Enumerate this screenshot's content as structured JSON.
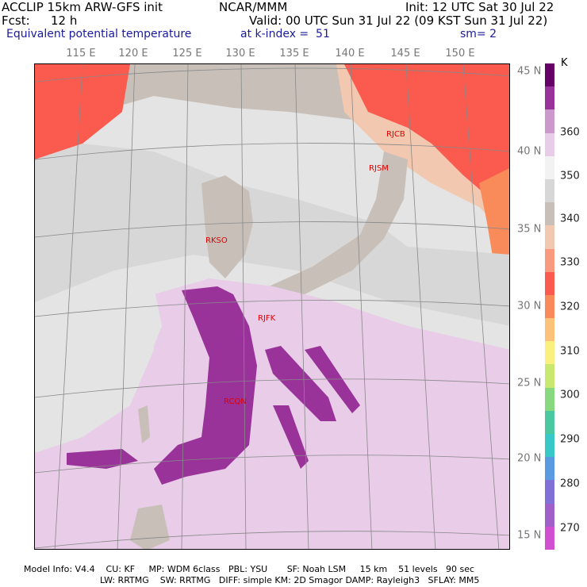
{
  "header": {
    "line1_left": "ACCLIP 15km ARW-GFS init",
    "line1_center": "NCAR/MMM",
    "line1_right": "Init: 12 UTC Sat 30 Jul 22",
    "fcst_label": "Fcst:",
    "fcst_value": "12 h",
    "valid": "Valid: 00 UTC Sun 31 Jul 22 (09 KST Sun 31 Jul 22)",
    "field": "Equivalent potential temperature",
    "level": "at k-index =  51",
    "smoothing": "sm= 2"
  },
  "map": {
    "lon_labels": [
      "115 E",
      "120 E",
      "125 E",
      "130 E",
      "135 E",
      "140 E",
      "145 E",
      "150 E"
    ],
    "lat_labels": [
      "45 N",
      "40 N",
      "35 N",
      "30 N",
      "25 N",
      "20 N",
      "15 N"
    ],
    "stations": [
      "RJCB",
      "RJSM",
      "RKSO",
      "RJFK",
      "RCQN"
    ]
  },
  "colorbar": {
    "unit": "K",
    "labels": [
      "360",
      "350",
      "340",
      "330",
      "320",
      "310",
      "300",
      "290",
      "280",
      "270"
    ],
    "colors": [
      "#660066",
      "#993399",
      "#cc99cc",
      "#e8cce8",
      "#f2f2f2",
      "#d7d7d7",
      "#c8c0b8",
      "#f2c8b0",
      "#f99a7e",
      "#fb5a4e",
      "#f98a5a",
      "#fcc27a",
      "#faf080",
      "#c8e870",
      "#88d880",
      "#4cc8a0",
      "#38c8c8",
      "#5a9ae0",
      "#8070d8",
      "#a060c8",
      "#d050d0"
    ]
  },
  "footer": {
    "line1": "Model Info: V4.4    CU: KF     MP: WDM 6class   PBL: YSU       SF: Noah LSM     15 km    51 levels   90 sec",
    "line2": "LW: RRTMG    SW: RRTMG   DIFF: simple KM: 2D Smagor DAMP: Rayleigh3   SFLAY: MM5"
  }
}
